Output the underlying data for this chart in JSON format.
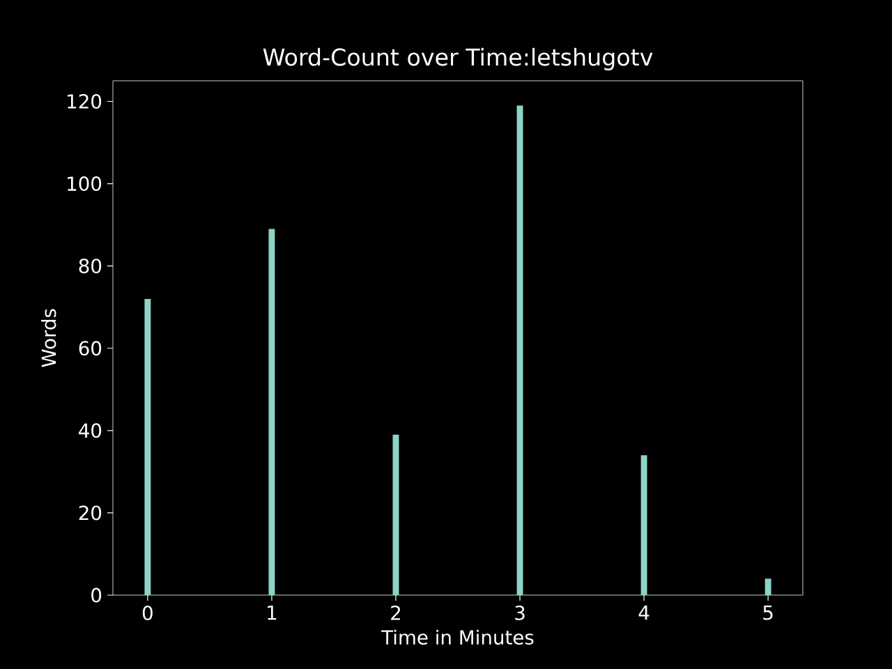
{
  "chart_data": {
    "type": "bar",
    "title": "Word-Count over Time:letshugotv",
    "xlabel": "Time in Minutes",
    "ylabel": "Words",
    "x": [
      0,
      1,
      2,
      3,
      4,
      5
    ],
    "values": [
      72,
      89,
      39,
      119,
      34,
      4
    ],
    "color": "#8dd3c7",
    "xlim": [
      -0.28,
      5.28
    ],
    "ylim": [
      0,
      125
    ],
    "xticks": [
      0,
      1,
      2,
      3,
      4,
      5
    ],
    "yticks": [
      0,
      20,
      40,
      60,
      80,
      100,
      120
    ]
  }
}
